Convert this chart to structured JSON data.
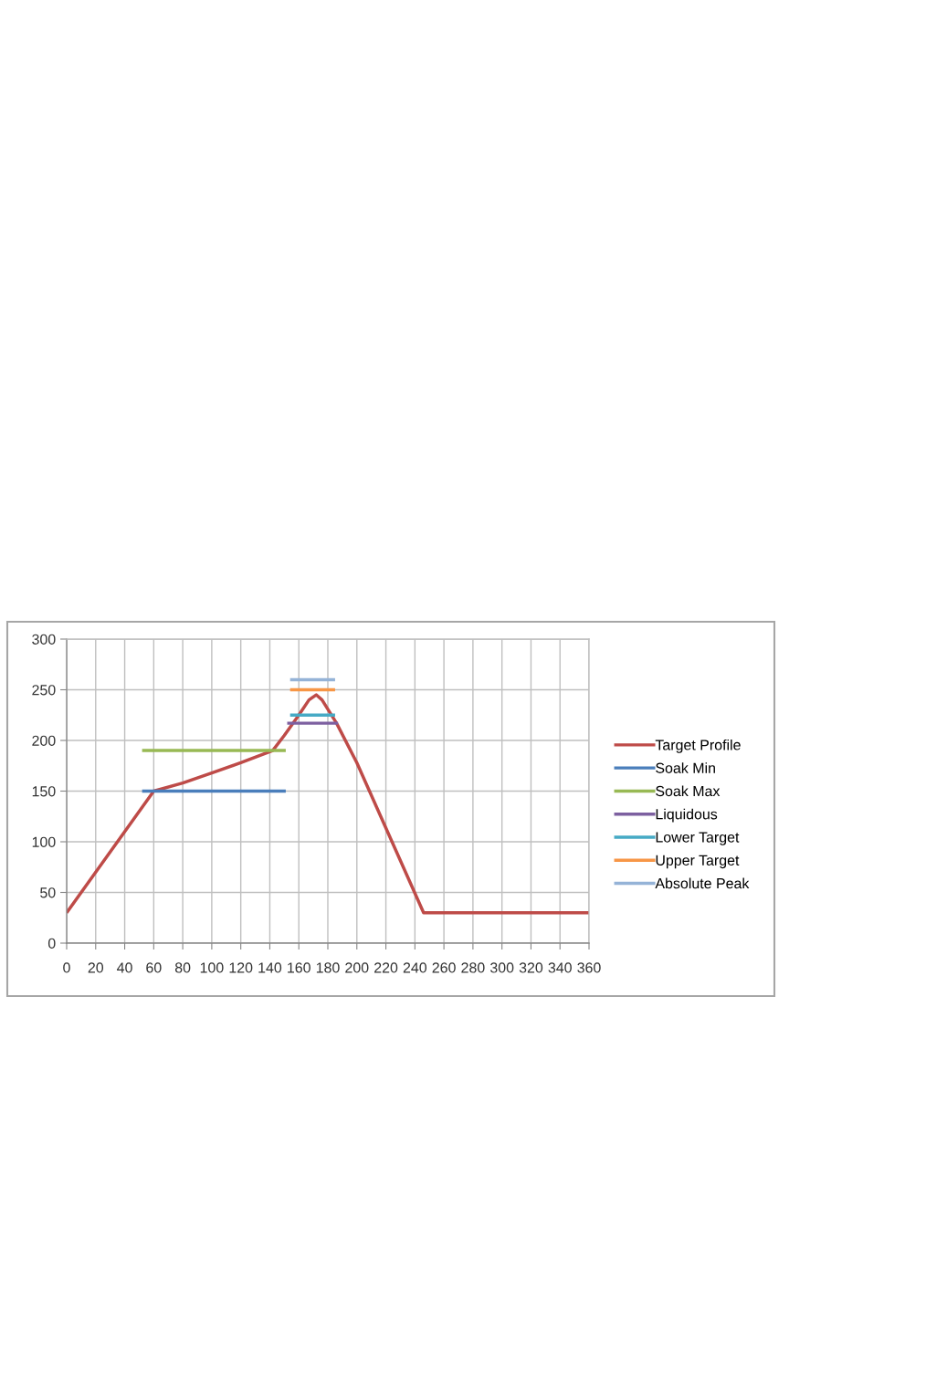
{
  "chart_data": {
    "type": "line",
    "series": [
      {
        "name": "Target Profile",
        "color": "#be4b48",
        "x": [
          0,
          60,
          80,
          100,
          120,
          142,
          150,
          160,
          167,
          172,
          176,
          186,
          200,
          246,
          360
        ],
        "values": [
          30,
          150,
          158,
          168,
          178,
          190,
          205,
          225,
          240,
          245,
          240,
          217,
          178,
          30,
          30
        ]
      },
      {
        "name": "Soak Min",
        "color": "#4a7ebb",
        "x": [
          52,
          151
        ],
        "values": [
          150,
          150
        ]
      },
      {
        "name": "Soak Max",
        "color": "#98b954",
        "x": [
          52,
          151
        ],
        "values": [
          190,
          190
        ]
      },
      {
        "name": "Liquidous",
        "color": "#7d60a0",
        "x": [
          152,
          187
        ],
        "values": [
          217,
          217
        ]
      },
      {
        "name": "Lower Target",
        "color": "#46aac5",
        "x": [
          154,
          185
        ],
        "values": [
          225,
          225
        ]
      },
      {
        "name": "Upper Target",
        "color": "#f79646",
        "x": [
          154,
          185
        ],
        "values": [
          250,
          250
        ]
      },
      {
        "name": "Absolute Peak",
        "color": "#95b3d7",
        "x": [
          154,
          185
        ],
        "values": [
          260,
          260
        ]
      }
    ],
    "xlim": [
      0,
      360
    ],
    "ylim": [
      0,
      300
    ],
    "xticks": [
      0,
      20,
      40,
      60,
      80,
      100,
      120,
      140,
      160,
      180,
      200,
      220,
      240,
      260,
      280,
      300,
      320,
      340,
      360
    ],
    "yticks": [
      0,
      50,
      100,
      150,
      200,
      250,
      300
    ],
    "grid": true,
    "legend": "right",
    "marker": "none",
    "line_style": "solid"
  }
}
